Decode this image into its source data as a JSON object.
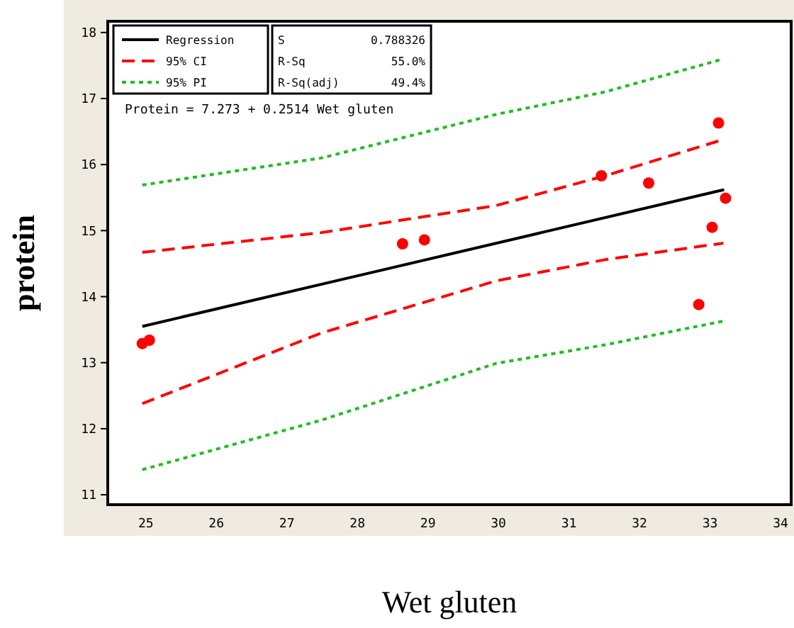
{
  "chart_data": {
    "type": "scatter",
    "xlabel": "Wet gluten",
    "ylabel": "protein",
    "xlim": [
      24.46,
      34.15
    ],
    "ylim": [
      10.85,
      18.17
    ],
    "xticks": [
      25,
      26,
      27,
      28,
      29,
      30,
      31,
      32,
      33,
      34
    ],
    "yticks": [
      11,
      12,
      13,
      14,
      15,
      16,
      17,
      18
    ],
    "grid": false,
    "legend": "top left",
    "marker": "circle",
    "annotations": [
      "Protein = 7.273 + 0.2514 Wet gluten",
      "S",
      "0.788326",
      "R-Sq",
      "55.0%",
      "R-Sq(adj)",
      "49.4%"
    ],
    "series": [
      {
        "color": "#ff0000",
        "x": [
          24.95,
          25.05,
          28.64,
          28.95,
          31.46,
          32.13,
          33.12,
          33.22,
          33.03,
          32.84
        ],
        "values": [
          13.29,
          13.34,
          14.8,
          14.86,
          15.83,
          15.72,
          16.63,
          15.49,
          15.05,
          13.88
        ]
      },
      {
        "type": "line",
        "name": "Regression",
        "color": "#000000",
        "line_style": "solid",
        "marker": "none",
        "x": [
          24.95,
          33.2
        ],
        "values": [
          13.55,
          15.62
        ]
      },
      {
        "type": "line",
        "name": "95% CI",
        "color": "#ff0000",
        "line_style": "dashed",
        "marker": "none",
        "x": [
          24.95,
          27.49,
          29.97,
          31.51,
          33.19
        ],
        "values": [
          14.67,
          14.97,
          15.38,
          15.83,
          16.38
        ]
      },
      {
        "type": "line",
        "color": "#ff0000",
        "line_style": "dashed",
        "marker": "none",
        "x": [
          24.95,
          27.49,
          29.97,
          31.51,
          33.19
        ],
        "values": [
          12.38,
          13.45,
          14.24,
          14.56,
          14.81
        ]
      },
      {
        "type": "line",
        "name": "95% PI",
        "color": "#22bb22",
        "line_style": "dotted",
        "marker": "none",
        "x": [
          24.95,
          27.49,
          29.97,
          31.51,
          33.19
        ],
        "values": [
          15.69,
          16.1,
          16.76,
          17.1,
          17.6
        ]
      },
      {
        "type": "line",
        "color": "#22bb22",
        "line_style": "dotted",
        "marker": "none",
        "x": [
          24.95,
          27.49,
          29.97,
          31.51,
          33.19
        ],
        "values": [
          11.38,
          12.13,
          12.99,
          13.27,
          13.63
        ]
      }
    ]
  }
}
